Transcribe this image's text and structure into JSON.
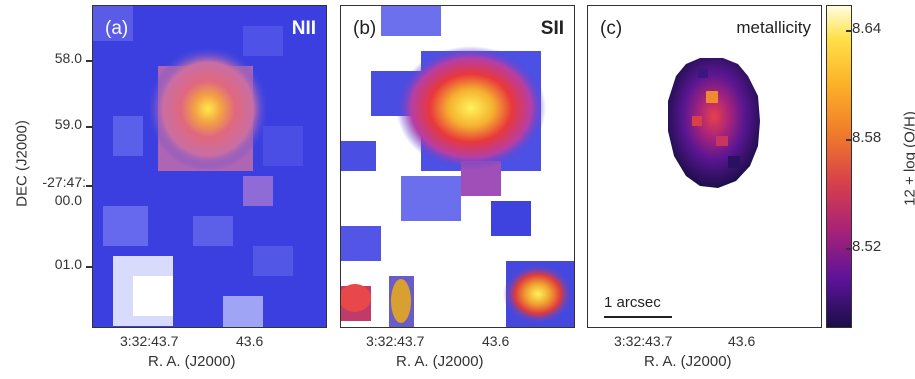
{
  "panels": [
    {
      "label": "(a)",
      "title": "NII"
    },
    {
      "label": "(b)",
      "title": "SII"
    },
    {
      "label": "(c)",
      "title": "metallicity"
    }
  ],
  "y_axis": {
    "title": "DEC (J2000)",
    "ticks": [
      "58.0",
      "59.0",
      "-27:47:",
      "00.0",
      "01.0"
    ]
  },
  "x_axis": {
    "title": "R. A. (J2000)",
    "ticks": [
      "3:32:43.7",
      "43.6"
    ]
  },
  "colorbar": {
    "title": "12 + log (O/H)",
    "ticks": [
      "8.64",
      "8.58",
      "8.52"
    ]
  },
  "scale_bar": {
    "label": "1 arcsec"
  },
  "colors": {
    "background_a": "#3b3fe0",
    "background_b": "#ffffff",
    "peak": "#ffe14a"
  }
}
